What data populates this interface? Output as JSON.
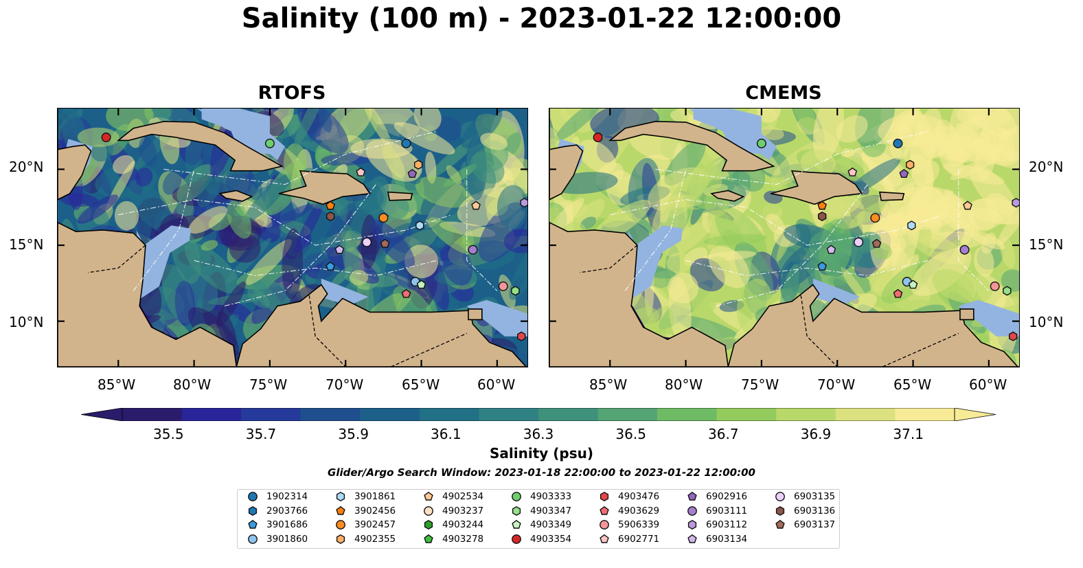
{
  "title": "Salinity (100 m) - 2023-01-22 12:00:00",
  "panels": [
    {
      "title": "RTOFS",
      "palette": "rtofs"
    },
    {
      "title": "CMEMS",
      "palette": "cmems"
    }
  ],
  "map_extent": {
    "lon": [
      -89,
      -58
    ],
    "lat": [
      7,
      24
    ]
  },
  "lon_ticks": [
    {
      "value": -85,
      "label": "85°W"
    },
    {
      "value": -80,
      "label": "80°W"
    },
    {
      "value": -75,
      "label": "75°W"
    },
    {
      "value": -70,
      "label": "70°W"
    },
    {
      "value": -65,
      "label": "65°W"
    },
    {
      "value": -60,
      "label": "60°W"
    }
  ],
  "lat_ticks": [
    {
      "value": 20,
      "label": "20°N"
    },
    {
      "value": 15,
      "label": "15°N"
    },
    {
      "value": 10,
      "label": "10°N"
    }
  ],
  "colors": {
    "land": "#d2b48c",
    "shelf": "#93b4e0",
    "deep_offshore": "#2b1c6b",
    "marker_edge": "#111111"
  },
  "colorbar": {
    "label": "Salinity (psu)",
    "ticks": [
      "35.5",
      "35.7",
      "35.9",
      "36.1",
      "36.3",
      "36.5",
      "36.7",
      "36.9",
      "37.1"
    ],
    "min": 35.4,
    "max": 37.2,
    "colors": [
      "#2b1c6b",
      "#29249a",
      "#253a9a",
      "#1f4f8f",
      "#1c6089",
      "#217086",
      "#2f8184",
      "#3f917b",
      "#55a574",
      "#6fbb65",
      "#93cc5c",
      "#b9d86a",
      "#dbe17e",
      "#f8eb97"
    ]
  },
  "search_window": "Glider/Argo Search Window: 2023-01-18 22:00:00 to 2023-01-22 12:00:00",
  "legend": [
    {
      "id": "1902314",
      "shape": "circle",
      "color": "#1f77b4"
    },
    {
      "id": "2903766",
      "shape": "hexagon",
      "color": "#1f77b4"
    },
    {
      "id": "3901686",
      "shape": "pentagon",
      "color": "#3b9ae1"
    },
    {
      "id": "3901860",
      "shape": "circle",
      "color": "#8ec3ee"
    },
    {
      "id": "3901861",
      "shape": "hexagon",
      "color": "#aedcf5"
    },
    {
      "id": "3902456",
      "shape": "pentagon",
      "color": "#ff7f0e"
    },
    {
      "id": "3902457",
      "shape": "circle",
      "color": "#ff8c22"
    },
    {
      "id": "4902355",
      "shape": "hexagon",
      "color": "#ffb066"
    },
    {
      "id": "4902534",
      "shape": "pentagon",
      "color": "#ffc996"
    },
    {
      "id": "4903237",
      "shape": "circle",
      "color": "#ffe0c2"
    },
    {
      "id": "4903244",
      "shape": "hexagon",
      "color": "#2ca02c"
    },
    {
      "id": "4903278",
      "shape": "pentagon",
      "color": "#3fbf3f"
    },
    {
      "id": "4903333",
      "shape": "circle",
      "color": "#6fcf6f"
    },
    {
      "id": "4903347",
      "shape": "hexagon",
      "color": "#98df8a"
    },
    {
      "id": "4903349",
      "shape": "pentagon",
      "color": "#c6f2c0"
    },
    {
      "id": "4903354",
      "shape": "circle",
      "color": "#d62728"
    },
    {
      "id": "4903476",
      "shape": "hexagon",
      "color": "#e0474a"
    },
    {
      "id": "4903629",
      "shape": "pentagon",
      "color": "#ef6d72"
    },
    {
      "id": "5906339",
      "shape": "circle",
      "color": "#f4959a"
    },
    {
      "id": "6902771",
      "shape": "pentagon",
      "color": "#ffc4c4"
    },
    {
      "id": "6902916",
      "shape": "pentagon",
      "color": "#9467bd"
    },
    {
      "id": "6903111",
      "shape": "circle",
      "color": "#a57ecf"
    },
    {
      "id": "6903112",
      "shape": "hexagon",
      "color": "#bb99de"
    },
    {
      "id": "6903134",
      "shape": "pentagon",
      "color": "#d2b8ee"
    },
    {
      "id": "6903135",
      "shape": "circle",
      "color": "#ecd0f8"
    },
    {
      "id": "6903136",
      "shape": "hexagon",
      "color": "#8c564b"
    },
    {
      "id": "6903137",
      "shape": "pentagon",
      "color": "#a46a5b"
    }
  ],
  "floats": [
    {
      "id": "4903354",
      "lon": -85.8,
      "lat": 22.1
    },
    {
      "id": "4903333",
      "lon": -75.0,
      "lat": 21.7
    },
    {
      "id": "1902314",
      "lon": -66.0,
      "lat": 21.7
    },
    {
      "id": "4902355",
      "lon": -65.2,
      "lat": 20.3
    },
    {
      "id": "6902771",
      "lon": -69.0,
      "lat": 19.8
    },
    {
      "id": "6902916",
      "lon": -65.6,
      "lat": 19.7
    },
    {
      "id": "3902456",
      "lon": -71.0,
      "lat": 17.6
    },
    {
      "id": "4902534",
      "lon": -61.4,
      "lat": 17.6
    },
    {
      "id": "6903112",
      "lon": -58.2,
      "lat": 17.8
    },
    {
      "id": "6903136",
      "lon": -71.0,
      "lat": 16.9
    },
    {
      "id": "3902457",
      "lon": -67.5,
      "lat": 16.8
    },
    {
      "id": "3901861",
      "lon": -65.1,
      "lat": 16.3
    },
    {
      "id": "6903134",
      "lon": -70.4,
      "lat": 14.7
    },
    {
      "id": "6903135",
      "lon": -68.6,
      "lat": 15.2
    },
    {
      "id": "6903137",
      "lon": -67.4,
      "lat": 15.1
    },
    {
      "id": "6903111",
      "lon": -61.6,
      "lat": 14.7
    },
    {
      "id": "3901686",
      "lon": -71.0,
      "lat": 13.6
    },
    {
      "id": "3901860",
      "lon": -65.4,
      "lat": 12.6
    },
    {
      "id": "4903349",
      "lon": -65.0,
      "lat": 12.4
    },
    {
      "id": "4903629",
      "lon": -66.0,
      "lat": 11.8
    },
    {
      "id": "5906339",
      "lon": -59.6,
      "lat": 12.3
    },
    {
      "id": "4903347",
      "lon": -58.8,
      "lat": 12.0
    },
    {
      "id": "4903476",
      "lon": -58.4,
      "lat": 9.0
    }
  ]
}
